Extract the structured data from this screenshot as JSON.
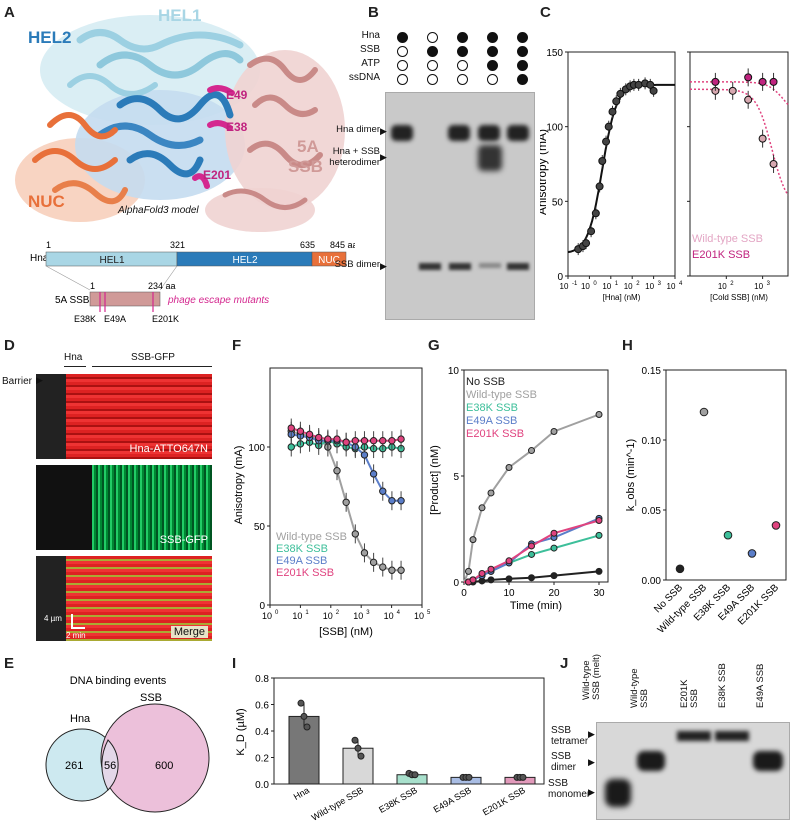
{
  "panels": {
    "A": "A",
    "B": "B",
    "C": "C",
    "D": "D",
    "E": "E",
    "F": "F",
    "G": "G",
    "H": "H",
    "I": "I",
    "J": "J"
  },
  "colors": {
    "hel1": "#a9d6e5",
    "hel2": "#2b7bb9",
    "nuc": "#e8703a",
    "ssb": "#d09a98",
    "magenta": "#d4288f",
    "wt": "#a0a0a0",
    "e38k": "#3dbf9a",
    "e49a": "#5b7ec9",
    "e201k": "#e0437f",
    "black": "#222222",
    "venn_hna": "#cde9f0",
    "venn_ssb": "#ecc0da"
  },
  "panelA": {
    "labels": {
      "hel2": "HEL2",
      "hel1": "HEL1",
      "nuc": "NUC",
      "ssb_5a": "5A",
      "ssb_name": "SSB",
      "e49": "E49",
      "e38": "E38",
      "e201": "E201"
    },
    "caption": "AlphaFold3 model",
    "domain_map": {
      "protein": "Hna",
      "domains": [
        "HEL1",
        "HEL2",
        "NUC"
      ],
      "boundaries": [
        "1",
        "321",
        "635",
        "845 aa"
      ],
      "ssb_protein": "5A SSB",
      "ssb_start": "1",
      "ssb_end": "234 aa",
      "mutants": [
        "E38K",
        "E49A",
        "E201K"
      ],
      "mutant_caption": "phage escape mutants"
    }
  },
  "panelB": {
    "row_labels": [
      "Hna",
      "SSB",
      "ATP",
      "ssDNA"
    ],
    "dots": [
      [
        1,
        0,
        1,
        1,
        1
      ],
      [
        0,
        1,
        1,
        1,
        1
      ],
      [
        0,
        0,
        0,
        1,
        1
      ],
      [
        0,
        0,
        0,
        0,
        1
      ]
    ],
    "band_labels": [
      "Hna dimer",
      "Hna + SSB",
      "heterodimer",
      "SSB dimer"
    ]
  },
  "panelC": {
    "ylabel": "Anisotropy (mA)",
    "xlabel_left": "[Hna] (nM)",
    "xlabel_right": "[Cold SSB] (nM)",
    "yticks": [
      "0",
      "50",
      "100",
      "150"
    ],
    "xticks_left": [
      "10",
      "10",
      "10",
      "10",
      "10",
      "10"
    ],
    "xticks_left_exp": [
      "-1",
      "0",
      "1",
      "2",
      "3",
      "4"
    ],
    "xticks_right": [
      "10",
      "10"
    ],
    "xticks_right_exp": [
      "2",
      "3"
    ],
    "legend": [
      "Wild-type SSB",
      "E201K SSB"
    ]
  },
  "chart_data": [
    {
      "type": "scatter",
      "panel": "C-left",
      "xscale": "log",
      "xlim": [
        0.1,
        10000
      ],
      "ylim": [
        0,
        150
      ],
      "x": [
        0.3,
        0.5,
        0.7,
        1.2,
        2,
        3,
        4,
        6,
        8,
        12,
        18,
        28,
        50,
        80,
        120,
        200,
        400,
        700,
        1000
      ],
      "y": [
        18,
        20,
        22,
        30,
        42,
        60,
        77,
        90,
        100,
        110,
        117,
        122,
        125,
        127,
        128,
        128,
        129,
        128,
        124
      ],
      "ylabel": "Anisotropy (mA)",
      "xlabel": "[Hna] (nM)"
    },
    {
      "type": "scatter",
      "panel": "C-right",
      "xscale": "log",
      "xlim": [
        10,
        5000
      ],
      "ylim": [
        0,
        150
      ],
      "series": [
        {
          "name": "Wild-type SSB",
          "x": [
            50,
            150,
            400,
            1000,
            2000
          ],
          "y": [
            124,
            124,
            118,
            92,
            75
          ]
        },
        {
          "name": "E201K SSB",
          "x": [
            50,
            400,
            1000,
            2000
          ],
          "y": [
            130,
            133,
            130,
            130
          ]
        }
      ],
      "xlabel": "[Cold SSB] (nM)"
    },
    {
      "type": "line",
      "panel": "F",
      "xscale": "log",
      "xlim": [
        1,
        100000
      ],
      "ylim": [
        0,
        150
      ],
      "xlabel": "[SSB] (nM)",
      "ylabel": "Anisotropy (mA)",
      "x": [
        5,
        10,
        20,
        40,
        80,
        160,
        320,
        640,
        1280,
        2560,
        5120,
        10240,
        20480
      ],
      "series": [
        {
          "name": "Wild-type SSB",
          "values": [
            110,
            108,
            107,
            105,
            100,
            85,
            65,
            45,
            33,
            27,
            24,
            22,
            22
          ]
        },
        {
          "name": "E38K SSB",
          "values": [
            100,
            102,
            103,
            101,
            104,
            102,
            100,
            99,
            100,
            99,
            99,
            100,
            99
          ]
        },
        {
          "name": "E49A SSB",
          "values": [
            108,
            107,
            106,
            104,
            104,
            104,
            103,
            100,
            95,
            83,
            72,
            66,
            66
          ]
        },
        {
          "name": "E201K SSB",
          "values": [
            112,
            110,
            108,
            106,
            105,
            105,
            103,
            104,
            104,
            104,
            104,
            104,
            105
          ]
        }
      ],
      "yticks": [
        "0",
        "50",
        "100"
      ]
    },
    {
      "type": "line",
      "panel": "G",
      "xlim": [
        0,
        32
      ],
      "ylim": [
        0,
        10
      ],
      "xlabel": "Time (min)",
      "ylabel": "[Product] (nM)",
      "x": [
        1,
        2,
        4,
        6,
        10,
        15,
        20,
        30
      ],
      "series": [
        {
          "name": "No SSB",
          "values": [
            0,
            0,
            0.05,
            0.1,
            0.15,
            0.2,
            0.3,
            0.5
          ]
        },
        {
          "name": "Wild-type SSB",
          "values": [
            0.5,
            2,
            3.5,
            4.2,
            5.4,
            6.2,
            7.1,
            7.9
          ]
        },
        {
          "name": "E38K SSB",
          "values": [
            0,
            0.1,
            0.3,
            0.5,
            0.9,
            1.3,
            1.6,
            2.2
          ]
        },
        {
          "name": "E49A SSB",
          "values": [
            0,
            0.1,
            0.3,
            0.5,
            0.9,
            1.8,
            2.1,
            3.0
          ]
        },
        {
          "name": "E201K SSB",
          "values": [
            0,
            0.1,
            0.4,
            0.6,
            1.0,
            1.7,
            2.3,
            2.9
          ]
        }
      ],
      "yticks": [
        "0",
        "5",
        "10"
      ],
      "xticks": [
        "0",
        "10",
        "20",
        "30"
      ]
    },
    {
      "type": "scatter",
      "panel": "H",
      "ylim": [
        0,
        0.15
      ],
      "categories": [
        "No SSB",
        "Wild-type SSB",
        "E38K SSB",
        "E49A SSB",
        "E201K SSB"
      ],
      "values": [
        0.008,
        0.12,
        0.032,
        0.019,
        0.039
      ],
      "ylabel": "k_obs (min^-1)",
      "yticks": [
        "0.00",
        "0.05",
        "0.10",
        "0.15"
      ]
    },
    {
      "type": "bar",
      "panel": "I",
      "ylim": [
        0,
        0.8
      ],
      "categories": [
        "Hna",
        "Wild-type SSB",
        "E38K SSB",
        "E49A SSB",
        "E201K SSB"
      ],
      "values": [
        0.51,
        0.27,
        0.07,
        0.05,
        0.05
      ],
      "points": [
        [
          0.61,
          0.51,
          0.43
        ],
        [
          0.33,
          0.27,
          0.21
        ],
        [
          0.08,
          0.07,
          0.07
        ],
        [
          0.05,
          0.05,
          0.05
        ],
        [
          0.05,
          0.05,
          0.05
        ]
      ],
      "ylabel": "K_D (µM)",
      "yticks": [
        "0.0",
        "0.2",
        "0.4",
        "0.6",
        "0.8"
      ]
    }
  ],
  "panelD": {
    "top_labels": [
      "Hna",
      "SSB-GFP"
    ],
    "barrier": "Barrier",
    "channel_labels": [
      "Hna-ATTO647N",
      "SSB-GFP",
      "Merge"
    ],
    "scale_len": "4 µm",
    "scale_time": "2 min"
  },
  "panelE": {
    "title": "DNA binding events",
    "left": "Hna",
    "right": "SSB",
    "only_left": "261",
    "both": "56",
    "only_right": "600"
  },
  "panelG_legend": [
    "No SSB",
    "Wild-type SSB",
    "E38K SSB",
    "E49A SSB",
    "E201K SSB"
  ],
  "panelF_legend": [
    "Wild-type SSB",
    "E38K SSB",
    "E49A SSB",
    "E201K SSB"
  ],
  "panelJ": {
    "lanes": [
      "Wild-type SSB (melt)",
      "Wild-type SSB",
      "E201K SSB",
      "E38K SSB",
      "E49A SSB"
    ],
    "band_labels": [
      "SSB tetramer",
      "SSB dimer",
      "SSB monomer"
    ]
  }
}
